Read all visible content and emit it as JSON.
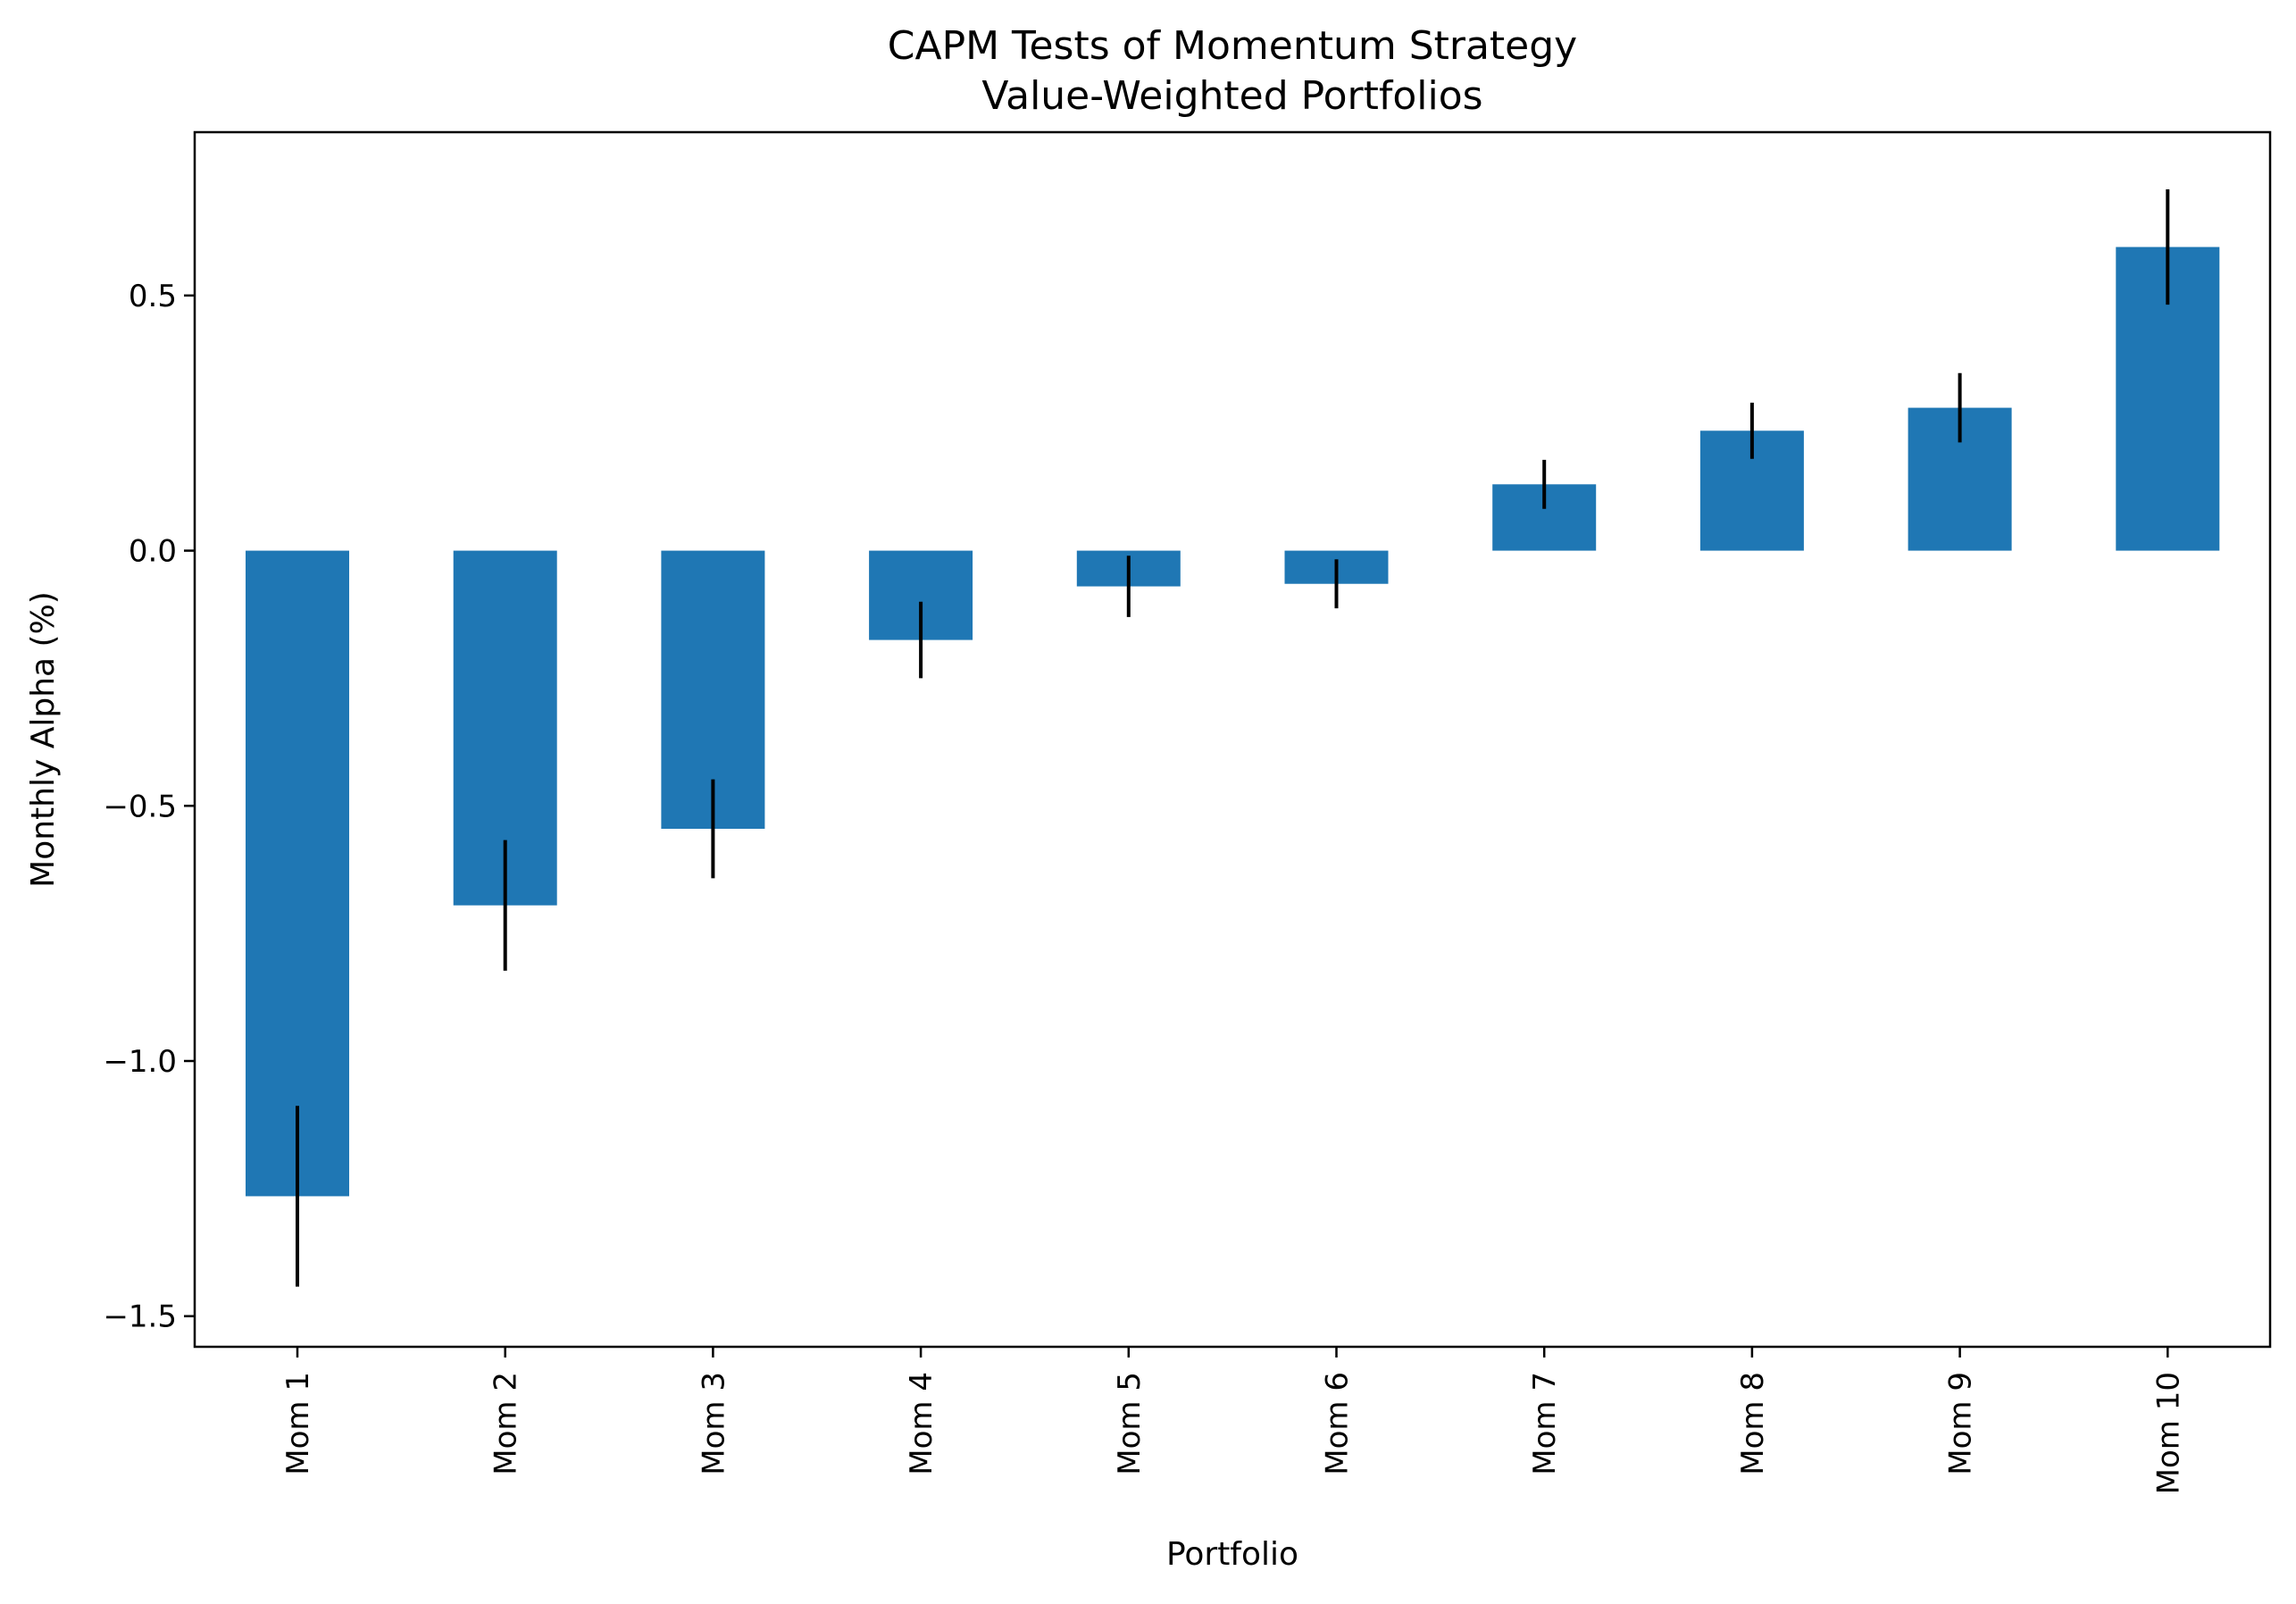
{
  "chart_data": {
    "type": "bar",
    "title": [
      "CAPM Tests of Momentum Strategy",
      "Value-Weighted Portfolios"
    ],
    "xlabel": "Portfolio",
    "ylabel": "Monthly Alpha (%)",
    "categories": [
      "Mom 1",
      "Mom 2",
      "Mom 3",
      "Mom 4",
      "Mom 5",
      "Mom 6",
      "Mom 7",
      "Mom 8",
      "Mom 9",
      "Mom 10"
    ],
    "values": [
      -1.265,
      -0.695,
      -0.545,
      -0.175,
      -0.07,
      -0.065,
      0.13,
      0.235,
      0.28,
      0.595
    ],
    "errors": [
      0.177,
      0.128,
      0.097,
      0.075,
      0.06,
      0.048,
      0.048,
      0.055,
      0.068,
      0.113
    ],
    "ylim": [
      -1.56,
      0.82
    ],
    "yticks": [
      -1.5,
      -1.0,
      -0.5,
      0.0,
      0.5
    ],
    "ytick_labels": [
      "−1.5",
      "−1.0",
      "−0.5",
      "0.0",
      "0.5"
    ],
    "grid": false,
    "legend": "none",
    "colors": {
      "bar": "#1f77b4",
      "errorbar": "#000000",
      "axes": "#000000"
    }
  }
}
